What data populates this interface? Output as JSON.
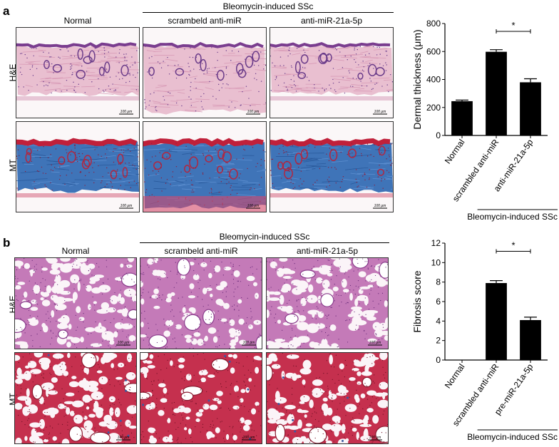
{
  "panel_a": {
    "label": "a",
    "group_header": "Bleomycin-induced SSc",
    "columns": [
      "Normal",
      "scrambeld anti-miR",
      "anti-miR-21a-5p"
    ],
    "rows": [
      "H&E",
      "MT"
    ],
    "scale_bar": "100 μm"
  },
  "panel_b": {
    "label": "b",
    "group_header": "Bleomycin-induced SSc",
    "columns": [
      "Normal",
      "scrambeld anti-miR",
      "anti-miR-21a-5p"
    ],
    "rows": [
      "H&E",
      "MT"
    ],
    "scale_bar": "100 μm"
  },
  "chart_data": [
    {
      "type": "bar",
      "categories": [
        "Normal",
        "scrambled anti-miR",
        "anti-miR-21a-5p"
      ],
      "values": [
        245,
        598,
        380
      ],
      "errors": [
        8,
        15,
        25
      ],
      "ylabel": "Dermal thickness (μm)",
      "ylim": [
        0,
        800
      ],
      "yticks": [
        0,
        200,
        400,
        600,
        800
      ],
      "group_label": "Bleomycin-induced SSc",
      "significance": "*",
      "bar_color": "#000000"
    },
    {
      "type": "bar",
      "categories": [
        "Normal",
        "scrambled anti-miR",
        "pre-miR-21a-5p"
      ],
      "values": [
        0,
        7.9,
        4.1
      ],
      "errors": [
        0,
        0.25,
        0.3
      ],
      "ylabel": "Fibrosis score",
      "ylim": [
        0,
        12
      ],
      "yticks": [
        0,
        2,
        4,
        6,
        8,
        10,
        12
      ],
      "group_label": "Bleomycin-induced SSc",
      "significance": "*",
      "bar_color": "#000000"
    }
  ]
}
